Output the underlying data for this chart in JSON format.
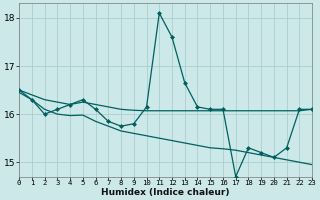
{
  "xlabel": "Humidex (Indice chaleur)",
  "bg_color": "#cce8e8",
  "line_color": "#006060",
  "grid_color": "#aacece",
  "x": [
    0,
    1,
    2,
    3,
    4,
    5,
    6,
    7,
    8,
    9,
    10,
    11,
    12,
    13,
    14,
    15,
    16,
    17,
    18,
    19,
    20,
    21,
    22,
    23
  ],
  "y_main": [
    16.5,
    16.3,
    16.0,
    16.1,
    16.2,
    16.3,
    16.1,
    15.85,
    15.75,
    15.8,
    16.15,
    18.1,
    17.6,
    16.65,
    16.15,
    16.1,
    16.1,
    14.7,
    15.3,
    15.2,
    15.1,
    15.3,
    16.1,
    16.1
  ],
  "y_upper": [
    16.5,
    16.4,
    16.3,
    16.25,
    16.2,
    16.25,
    16.2,
    16.15,
    16.1,
    16.08,
    16.07,
    16.07,
    16.07,
    16.07,
    16.07,
    16.07,
    16.07,
    16.07,
    16.07,
    16.07,
    16.07,
    16.07,
    16.07,
    16.1
  ],
  "y_lower": [
    16.45,
    16.3,
    16.1,
    16.0,
    15.97,
    15.98,
    15.85,
    15.75,
    15.65,
    15.6,
    15.55,
    15.5,
    15.45,
    15.4,
    15.35,
    15.3,
    15.28,
    15.25,
    15.2,
    15.15,
    15.1,
    15.05,
    15.0,
    14.95
  ],
  "xlim": [
    0,
    23
  ],
  "ylim": [
    14.7,
    18.3
  ],
  "yticks": [
    15,
    16,
    17,
    18
  ],
  "xticks": [
    0,
    1,
    2,
    3,
    4,
    5,
    6,
    7,
    8,
    9,
    10,
    11,
    12,
    13,
    14,
    15,
    16,
    17,
    18,
    19,
    20,
    21,
    22,
    23
  ]
}
